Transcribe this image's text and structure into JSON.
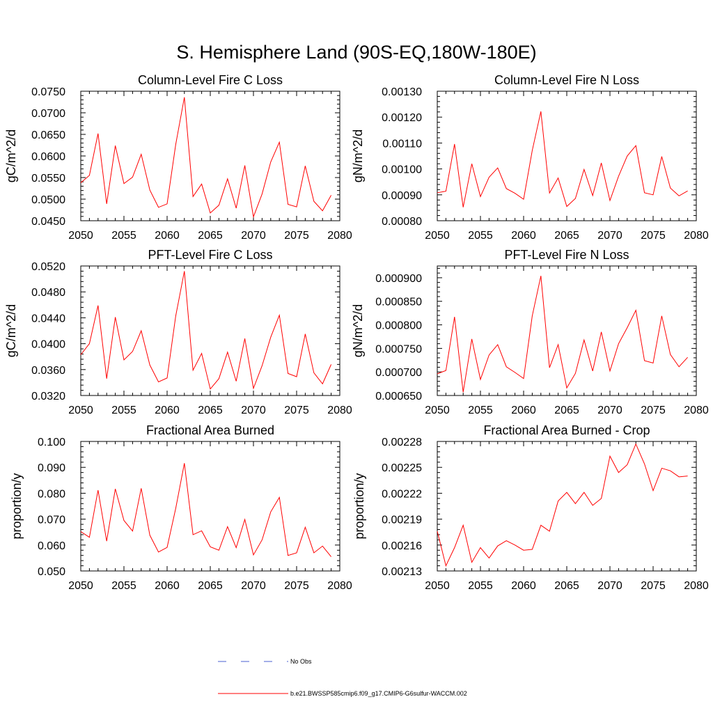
{
  "main_title": "S. Hemisphere Land (90S-EQ,180W-180E)",
  "legend": {
    "obs_label": "No Obs",
    "model_label": "b.e21.BWSSP585cmip6.f09_g17.CMIP6-G6sulfur-WACCM.002",
    "obs_color": "#4a5fd0",
    "model_color": "#ff0000"
  },
  "chart_data": [
    {
      "type": "line",
      "title": "Column-Level Fire C Loss",
      "ylabel": "gC/m^2/d",
      "xlim": [
        2050,
        2080
      ],
      "ylim": [
        0.045,
        0.075
      ],
      "xticks": [
        2050,
        2055,
        2060,
        2065,
        2070,
        2075,
        2080
      ],
      "yticks": [
        "0.0450",
        "0.0500",
        "0.0550",
        "0.0600",
        "0.0650",
        "0.0700",
        "0.0750"
      ],
      "x": [
        2050,
        2051,
        2052,
        2053,
        2054,
        2055,
        2056,
        2057,
        2058,
        2059,
        2060,
        2061,
        2062,
        2063,
        2064,
        2065,
        2066,
        2067,
        2068,
        2069,
        2070,
        2071,
        2072,
        2073,
        2074,
        2075,
        2076,
        2077,
        2078,
        2079
      ],
      "series": [
        {
          "name": "b.e21.BWSSP585cmip6.f09_g17.CMIP6-G6sulfur-WACCM.002",
          "values": [
            0.0538,
            0.0555,
            0.0652,
            0.0489,
            0.0624,
            0.0536,
            0.0551,
            0.0604,
            0.0521,
            0.0481,
            0.0489,
            0.0627,
            0.0736,
            0.0506,
            0.0535,
            0.0468,
            0.0486,
            0.0547,
            0.0479,
            0.0578,
            0.0459,
            0.0512,
            0.0586,
            0.0632,
            0.0488,
            0.0482,
            0.0577,
            0.0495,
            0.0473,
            0.0509
          ]
        }
      ]
    },
    {
      "type": "line",
      "title": "Column-Level Fire N Loss",
      "ylabel": "gN/m^2/d",
      "xlim": [
        2050,
        2080
      ],
      "ylim": [
        0.0008,
        0.0013
      ],
      "xticks": [
        2050,
        2055,
        2060,
        2065,
        2070,
        2075,
        2080
      ],
      "yticks": [
        "0.00080",
        "0.00090",
        "0.00100",
        "0.00110",
        "0.00120",
        "0.00130"
      ],
      "x": [
        2050,
        2051,
        2052,
        2053,
        2054,
        2055,
        2056,
        2057,
        2058,
        2059,
        2060,
        2061,
        2062,
        2063,
        2064,
        2065,
        2066,
        2067,
        2068,
        2069,
        2070,
        2071,
        2072,
        2073,
        2074,
        2075,
        2076,
        2077,
        2078,
        2079
      ],
      "series": [
        {
          "name": "b.e21.BWSSP585cmip6.f09_g17.CMIP6-G6sulfur-WACCM.002",
          "values": [
            0.000908,
            0.000914,
            0.001096,
            0.000852,
            0.00102,
            0.000893,
            0.000968,
            0.001004,
            0.000924,
            0.000906,
            0.000883,
            0.001071,
            0.001222,
            0.000907,
            0.000965,
            0.000855,
            0.000886,
            0.000998,
            0.000897,
            0.001023,
            0.000878,
            0.000972,
            0.00105,
            0.00109,
            0.000908,
            0.0009,
            0.001048,
            0.000926,
            0.000896,
            0.000915
          ]
        }
      ]
    },
    {
      "type": "line",
      "title": "PFT-Level Fire C Loss",
      "ylabel": "gC/m^2/d",
      "xlim": [
        2050,
        2080
      ],
      "ylim": [
        0.032,
        0.052
      ],
      "xticks": [
        2050,
        2055,
        2060,
        2065,
        2070,
        2075,
        2080
      ],
      "yticks": [
        "0.0320",
        "0.0360",
        "0.0400",
        "0.0440",
        "0.0480",
        "0.0520"
      ],
      "x": [
        2050,
        2051,
        2052,
        2053,
        2054,
        2055,
        2056,
        2057,
        2058,
        2059,
        2060,
        2061,
        2062,
        2063,
        2064,
        2065,
        2066,
        2067,
        2068,
        2069,
        2070,
        2071,
        2072,
        2073,
        2074,
        2075,
        2076,
        2077,
        2078,
        2079
      ],
      "series": [
        {
          "name": "b.e21.BWSSP585cmip6.f09_g17.CMIP6-G6sulfur-WACCM.002",
          "values": [
            0.0383,
            0.04,
            0.0459,
            0.0346,
            0.0441,
            0.0375,
            0.0388,
            0.042,
            0.0367,
            0.0341,
            0.0347,
            0.0443,
            0.0512,
            0.0359,
            0.0385,
            0.033,
            0.0346,
            0.0387,
            0.0342,
            0.0408,
            0.0331,
            0.0366,
            0.041,
            0.0444,
            0.0354,
            0.0349,
            0.0415,
            0.0355,
            0.0338,
            0.0368
          ]
        }
      ]
    },
    {
      "type": "line",
      "title": "PFT-Level Fire N Loss",
      "ylabel": "gN/m^2/d",
      "xlim": [
        2050,
        2080
      ],
      "ylim": [
        0.00065,
        0.000925
      ],
      "xticks": [
        2050,
        2055,
        2060,
        2065,
        2070,
        2075,
        2080
      ],
      "yticks": [
        "0.000650",
        "0.000700",
        "0.000750",
        "0.000800",
        "0.000850",
        "0.000900"
      ],
      "x": [
        2050,
        2051,
        2052,
        2053,
        2054,
        2055,
        2056,
        2057,
        2058,
        2059,
        2060,
        2061,
        2062,
        2063,
        2064,
        2065,
        2066,
        2067,
        2068,
        2069,
        2070,
        2071,
        2072,
        2073,
        2074,
        2075,
        2076,
        2077,
        2078,
        2079
      ],
      "series": [
        {
          "name": "b.e21.BWSSP585cmip6.f09_g17.CMIP6-G6sulfur-WACCM.002",
          "values": [
            0.000696,
            0.000703,
            0.000817,
            0.000657,
            0.00077,
            0.000684,
            0.000736,
            0.000758,
            0.000711,
            0.000699,
            0.000686,
            0.000819,
            0.000904,
            0.000709,
            0.000758,
            0.000666,
            0.000697,
            0.000768,
            0.000702,
            0.000785,
            0.000702,
            0.00076,
            0.000794,
            0.000831,
            0.000724,
            0.000719,
            0.000819,
            0.000737,
            0.000711,
            0.000731
          ]
        }
      ]
    },
    {
      "type": "line",
      "title": "Fractional Area Burned",
      "ylabel": "proportion/y",
      "xlim": [
        2050,
        2080
      ],
      "ylim": [
        0.05,
        0.1
      ],
      "xticks": [
        2050,
        2055,
        2060,
        2065,
        2070,
        2075,
        2080
      ],
      "yticks": [
        "0.050",
        "0.060",
        "0.070",
        "0.080",
        "0.090",
        "0.100"
      ],
      "x": [
        2050,
        2051,
        2052,
        2053,
        2054,
        2055,
        2056,
        2057,
        2058,
        2059,
        2060,
        2061,
        2062,
        2063,
        2064,
        2065,
        2066,
        2067,
        2068,
        2069,
        2070,
        2071,
        2072,
        2073,
        2074,
        2075,
        2076,
        2077,
        2078,
        2079
      ],
      "series": [
        {
          "name": "b.e21.BWSSP585cmip6.f09_g17.CMIP6-G6sulfur-WACCM.002",
          "values": [
            0.0652,
            0.063,
            0.0812,
            0.0615,
            0.0817,
            0.0695,
            0.0654,
            0.0819,
            0.0638,
            0.0573,
            0.0591,
            0.0742,
            0.0916,
            0.064,
            0.0655,
            0.0593,
            0.058,
            0.0671,
            0.059,
            0.0699,
            0.0562,
            0.062,
            0.0728,
            0.0784,
            0.056,
            0.057,
            0.0669,
            0.057,
            0.0596,
            0.0555
          ]
        }
      ]
    },
    {
      "type": "line",
      "title": "Fractional Area Burned - Crop",
      "ylabel": "proportion/y",
      "xlim": [
        2050,
        2080
      ],
      "ylim": [
        0.00213,
        0.00228
      ],
      "xticks": [
        2050,
        2055,
        2060,
        2065,
        2070,
        2075,
        2080
      ],
      "yticks": [
        "0.00213",
        "0.00216",
        "0.00219",
        "0.00222",
        "0.00225",
        "0.00228"
      ],
      "x": [
        2050,
        2051,
        2052,
        2053,
        2054,
        2055,
        2056,
        2057,
        2058,
        2059,
        2060,
        2061,
        2062,
        2063,
        2064,
        2065,
        2066,
        2067,
        2068,
        2069,
        2070,
        2071,
        2072,
        2073,
        2074,
        2075,
        2076,
        2077,
        2078,
        2079
      ],
      "series": [
        {
          "name": "b.e21.BWSSP585cmip6.f09_g17.CMIP6-G6sulfur-WACCM.002",
          "values": [
            0.002176,
            0.002136,
            0.002157,
            0.002183,
            0.00214,
            0.002157,
            0.002145,
            0.002159,
            0.002165,
            0.00216,
            0.002154,
            0.002155,
            0.002183,
            0.002176,
            0.002211,
            0.002221,
            0.002208,
            0.002221,
            0.002206,
            0.002214,
            0.002263,
            0.002244,
            0.002253,
            0.002277,
            0.002254,
            0.002223,
            0.002249,
            0.002246,
            0.002239,
            0.00224
          ]
        }
      ]
    }
  ]
}
